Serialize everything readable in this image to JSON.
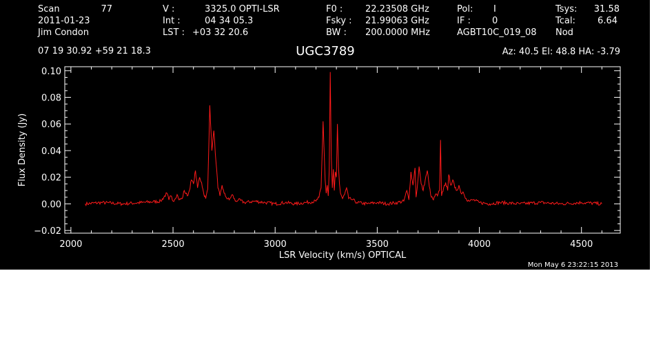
{
  "header": {
    "col1": {
      "scan_label": "Scan",
      "scan_value": "77",
      "date": "2011-01-23",
      "observer": "Jim Condon"
    },
    "col2": {
      "v_label": "V   :",
      "v_value": "3325.0 OPTI-LSR",
      "int_label": "Int  :",
      "int_value": "04 34 05.3",
      "lst_label": "LST :",
      "lst_value": "+03 32 20.6"
    },
    "col3": {
      "f0_label": "F0   :",
      "f0_value": "22.23508 GHz",
      "fsky_label": "Fsky :",
      "fsky_value": "21.99063 GHz",
      "bw_label": "BW   :",
      "bw_value": "200.0000 MHz"
    },
    "col4": {
      "pol_label": "Pol:",
      "pol_value": "I",
      "if_label": "IF :",
      "if_value": "0",
      "project": "AGBT10C_019_08"
    },
    "col5": {
      "tsys_label": "Tsys:",
      "tsys_value": "31.58",
      "tcal_label": "Tcal:",
      "tcal_value": "6.64",
      "mode": "Nod"
    },
    "coords": "07 19 30.92  +59 21 18.3",
    "source": "UGC3789",
    "azelha": "Az:  40.5   El:  48.8   HA: -3.79",
    "timestamp": "Mon May  6 23:22:15 2013"
  },
  "chart_data": {
    "type": "line",
    "title": "UGC3789",
    "xlabel": "LSR Velocity (km/s) OPTICAL",
    "ylabel": "Flux Density (Jy)",
    "xlim": [
      1970,
      4690
    ],
    "ylim": [
      -0.022,
      0.103
    ],
    "xticks": [
      2000,
      2500,
      3000,
      3500,
      4000,
      4500
    ],
    "xtick_labels": [
      "2000",
      "2500",
      "3000",
      "3500",
      "4000",
      "4500"
    ],
    "yticks": [
      -0.02,
      0.0,
      0.02,
      0.04,
      0.06,
      0.08,
      0.1
    ],
    "ytick_labels": [
      "−0.02",
      "0.00",
      "0.02",
      "0.04",
      "0.06",
      "0.08",
      "0.10"
    ],
    "grid": false,
    "series": [
      {
        "color": "#ff1a1a",
        "x": [
          2070,
          2150,
          2250,
          2350,
          2440,
          2470,
          2480,
          2490,
          2500,
          2520,
          2530,
          2545,
          2555,
          2570,
          2580,
          2590,
          2600,
          2610,
          2620,
          2630,
          2640,
          2650,
          2660,
          2670,
          2680,
          2690,
          2700,
          2710,
          2720,
          2730,
          2740,
          2750,
          2760,
          2775,
          2790,
          2805,
          2820,
          2850,
          2900,
          2950,
          3000,
          3050,
          3100,
          3150,
          3200,
          3215,
          3225,
          3235,
          3245,
          3250,
          3255,
          3260,
          3265,
          3270,
          3275,
          3280,
          3285,
          3290,
          3295,
          3300,
          3305,
          3310,
          3315,
          3320,
          3330,
          3340,
          3350,
          3360,
          3380,
          3400,
          3450,
          3500,
          3550,
          3600,
          3630,
          3645,
          3655,
          3665,
          3675,
          3685,
          3690,
          3695,
          3705,
          3715,
          3725,
          3735,
          3745,
          3755,
          3765,
          3775,
          3785,
          3795,
          3805,
          3810,
          3815,
          3825,
          3835,
          3845,
          3850,
          3860,
          3870,
          3880,
          3890,
          3900,
          3910,
          3920,
          3935,
          3950,
          3970,
          4000,
          4050,
          4100,
          4200,
          4300,
          4400,
          4500,
          4600
        ],
        "y": [
          0.0,
          0.001,
          0.0,
          0.001,
          0.002,
          0.008,
          0.003,
          0.006,
          0.002,
          0.007,
          0.003,
          0.004,
          0.01,
          0.006,
          0.01,
          0.018,
          0.015,
          0.025,
          0.012,
          0.02,
          0.016,
          0.008,
          0.004,
          0.011,
          0.074,
          0.04,
          0.055,
          0.032,
          0.012,
          0.006,
          0.014,
          0.008,
          0.005,
          0.003,
          0.007,
          0.002,
          0.003,
          0.001,
          0.002,
          0.001,
          0.0,
          0.001,
          0.0,
          0.001,
          0.002,
          0.005,
          0.012,
          0.062,
          0.018,
          0.008,
          0.014,
          0.006,
          0.025,
          0.099,
          0.035,
          0.012,
          0.026,
          0.01,
          0.024,
          0.02,
          0.06,
          0.028,
          0.015,
          0.008,
          0.004,
          0.007,
          0.012,
          0.004,
          0.003,
          0.001,
          0.0,
          0.001,
          0.0,
          0.001,
          0.002,
          0.01,
          0.003,
          0.024,
          0.014,
          0.027,
          0.005,
          0.011,
          0.028,
          0.015,
          0.01,
          0.018,
          0.025,
          0.013,
          0.005,
          0.003,
          0.007,
          0.006,
          0.01,
          0.048,
          0.006,
          0.012,
          0.016,
          0.01,
          0.022,
          0.014,
          0.018,
          0.012,
          0.01,
          0.014,
          0.008,
          0.009,
          0.004,
          0.002,
          0.003,
          0.001,
          0.0,
          0.001,
          0.0,
          0.001,
          0.0,
          0.001,
          0.0
        ]
      }
    ]
  },
  "colors": {
    "background": "#000000",
    "foreground": "#ffffff",
    "trace": "#ff1a1a",
    "page": "#ffffff"
  }
}
